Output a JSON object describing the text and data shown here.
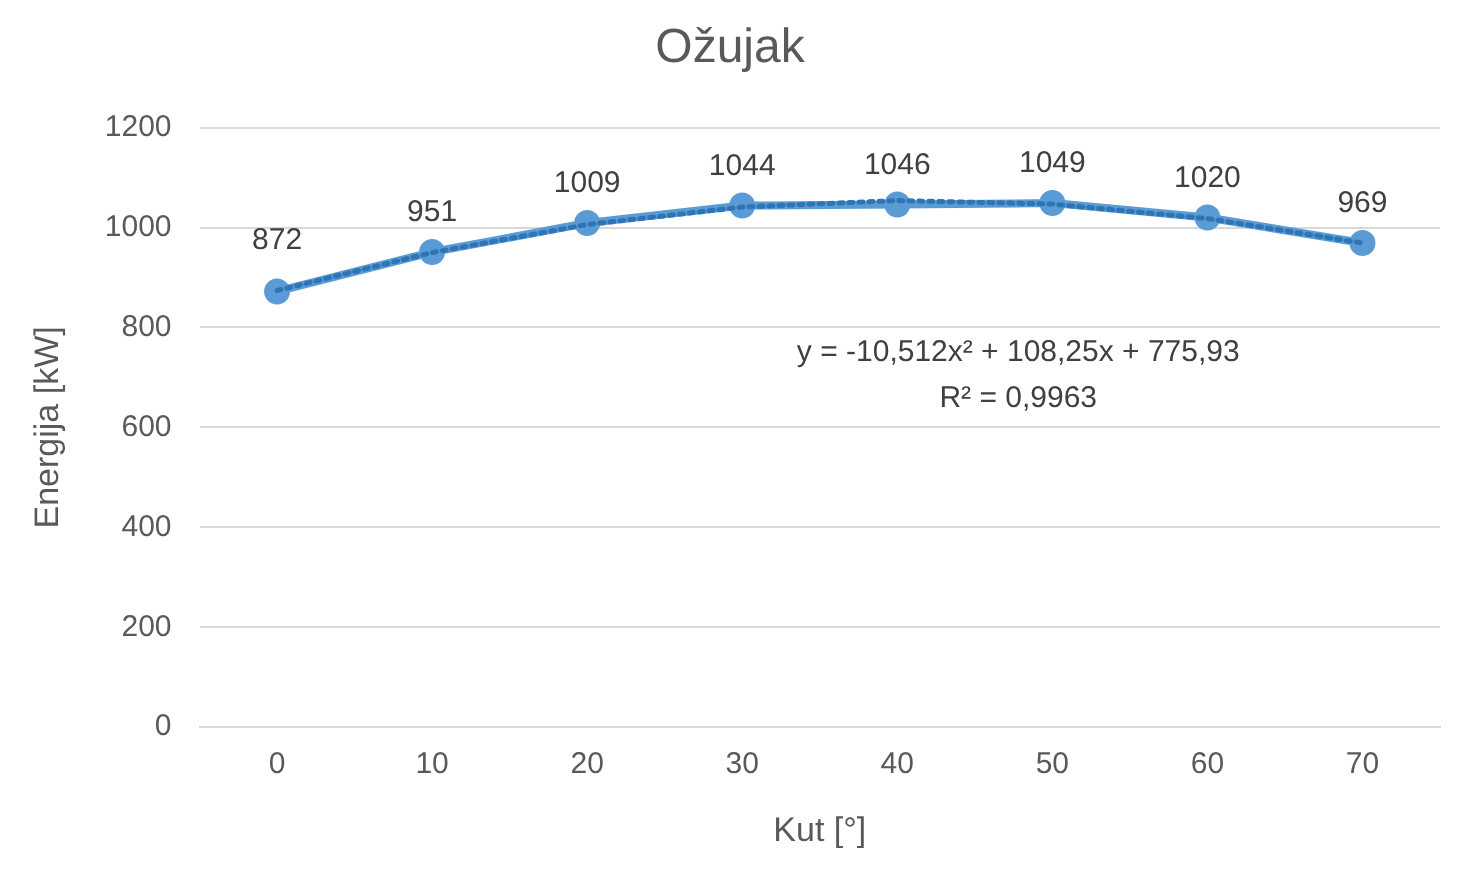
{
  "chart_data": {
    "type": "line",
    "title": "Ožujak",
    "xlabel": "Kut [°]",
    "ylabel": "Energija [kW]",
    "categories": [
      "0",
      "10",
      "20",
      "30",
      "40",
      "50",
      "60",
      "70"
    ],
    "series": [
      {
        "color": "#5b9bd5",
        "values": [
          872,
          951,
          1009,
          1044,
          1046,
          1049,
          1020,
          969
        ],
        "marker": "circle",
        "line_style": "solid",
        "data_labels": true
      },
      {
        "type": "line",
        "color": "#2e75b6",
        "values": [
          874,
          950,
          1006,
          1041,
          1054,
          1047,
          1018,
          969
        ],
        "marker": "none",
        "line_style": "dotted"
      }
    ],
    "ylim": [
      0,
      1200
    ],
    "yticks": [
      0,
      200,
      400,
      600,
      800,
      1000,
      1200
    ],
    "grid": "y",
    "legend": false,
    "annotations": [
      "y = -10,512x² + 108,25x + 775,93",
      "R² = 0,9963"
    ]
  }
}
